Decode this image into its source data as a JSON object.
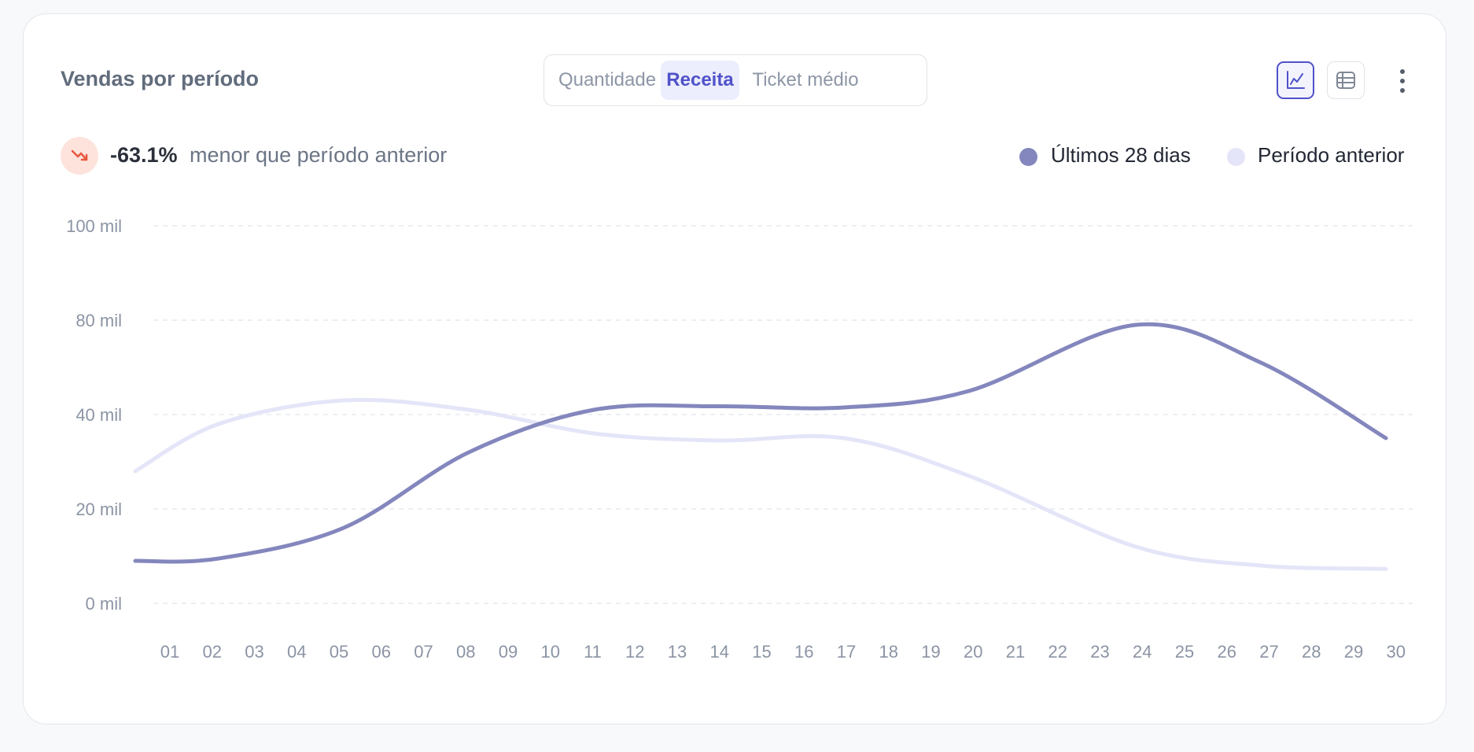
{
  "card": {
    "title": "Vendas por período"
  },
  "metric_tabs": [
    {
      "label": "Quantidade",
      "active": false
    },
    {
      "label": "Receita",
      "active": true
    },
    {
      "label": "Ticket médio",
      "active": false
    }
  ],
  "view_toggle": {
    "active": "line-chart-icon",
    "inactive": "table-icon",
    "accent": "#4f52c9"
  },
  "trend": {
    "value": "-63.1%",
    "text": "menor que período anterior",
    "direction": "down",
    "color": "#e8573d"
  },
  "legend": [
    {
      "name": "Últimos 28 dias",
      "color": "#8487bd"
    },
    {
      "name": "Período anterior",
      "color": "#e4e5f8"
    }
  ],
  "chart_data": {
    "type": "line",
    "x": [
      "01",
      "02",
      "03",
      "04",
      "05",
      "06",
      "07",
      "08",
      "09",
      "10",
      "11",
      "12",
      "13",
      "14",
      "15",
      "16",
      "17",
      "18",
      "19",
      "20",
      "21",
      "22",
      "23",
      "24",
      "25",
      "26",
      "27",
      "28",
      "29",
      "30"
    ],
    "y_ticks": [
      "0 mil",
      "20 mil",
      "40 mil",
      "80 mil",
      "100 mil"
    ],
    "series": [
      {
        "name": "Últimos 28 dias",
        "color": "#8487bd",
        "points": [
          [
            0,
            9
          ],
          [
            2,
            9.5
          ],
          [
            5,
            16
          ],
          [
            8,
            32
          ],
          [
            11,
            42
          ],
          [
            14,
            43.5
          ],
          [
            17,
            43
          ],
          [
            20,
            50
          ],
          [
            24,
            78
          ],
          [
            27,
            62
          ],
          [
            30,
            35
          ]
        ]
      },
      {
        "name": "Período anterior",
        "color": "#e4e5f8",
        "points": [
          [
            0,
            28
          ],
          [
            2,
            38
          ],
          [
            5,
            46
          ],
          [
            8,
            42
          ],
          [
            11,
            36
          ],
          [
            14,
            34.5
          ],
          [
            17,
            35
          ],
          [
            20,
            27
          ],
          [
            24,
            12
          ],
          [
            27,
            8
          ],
          [
            30,
            7.3
          ]
        ]
      }
    ],
    "grid": true,
    "legend_position": "top-right"
  }
}
